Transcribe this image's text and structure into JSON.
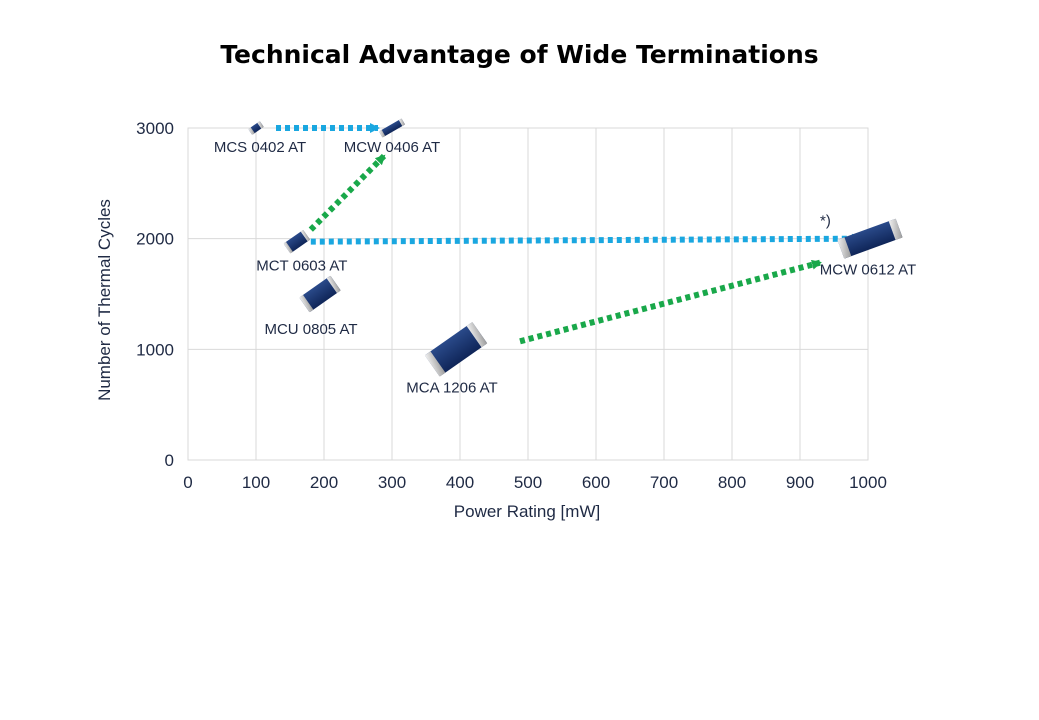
{
  "chart_data": {
    "type": "scatter",
    "title": "Technical Advantage of Wide Terminations",
    "xlabel": "Power Rating [mW]",
    "ylabel": "Number of Thermal Cycles",
    "xlim": [
      0,
      1000
    ],
    "ylim": [
      0,
      3000
    ],
    "xticks": [
      0,
      100,
      200,
      300,
      400,
      500,
      600,
      700,
      800,
      900,
      1000
    ],
    "yticks": [
      0,
      1000,
      2000,
      3000
    ],
    "grid": true,
    "points": [
      {
        "name": "MCS 0402 AT",
        "x": 100,
        "y": 3000,
        "size": "small"
      },
      {
        "name": "MCW 0406 AT",
        "x": 300,
        "y": 3000,
        "size": "small-wide"
      },
      {
        "name": "MCT 0603 AT",
        "x": 160,
        "y": 2000,
        "size": "medium"
      },
      {
        "name": "MCU 0805 AT",
        "x": 200,
        "y": 1500,
        "size": "medium-large"
      },
      {
        "name": "MCA 1206 AT",
        "x": 400,
        "y": 1000,
        "size": "large"
      },
      {
        "name": "MCW 0612 AT",
        "x": 1000,
        "y": 2000,
        "size": "large-wide"
      }
    ],
    "arrows": [
      {
        "from": "MCS 0402 AT",
        "to": "MCW 0406 AT",
        "color": "#1aa7e0",
        "style": "dotted"
      },
      {
        "from": "MCT 0603 AT",
        "to": "MCW 0406 AT",
        "color": "#19a84a",
        "style": "dotted"
      },
      {
        "from": "MCT 0603 AT",
        "to": "MCW 0612 AT",
        "color": "#1aa7e0",
        "style": "dotted"
      },
      {
        "from": "MCA 1206 AT",
        "to": "MCW 0612 AT",
        "color": "#19a84a",
        "style": "dotted"
      }
    ],
    "annotations": [
      {
        "text": "*)",
        "near": "MCW 0612 AT"
      }
    ]
  }
}
